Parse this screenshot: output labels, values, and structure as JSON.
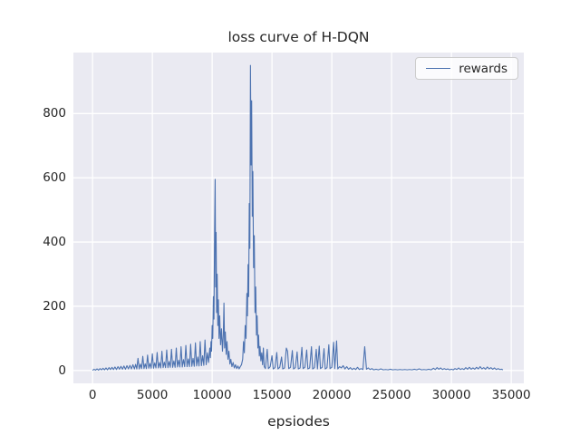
{
  "chart_data": {
    "type": "line",
    "title": "loss curve of H-DQN",
    "xlabel": "epsiodes",
    "ylabel": "",
    "legend_position": "upper right",
    "grid": true,
    "background_color": "#eaeaf2",
    "grid_color": "#ffffff",
    "text_color": "#262626",
    "line_color": "#4c72b0",
    "xlim": [
      -1600,
      36050
    ],
    "ylim": [
      -40,
      990
    ],
    "x_ticks": [
      0,
      5000,
      10000,
      15000,
      20000,
      25000,
      30000,
      35000
    ],
    "y_ticks": [
      0,
      200,
      400,
      600,
      800
    ],
    "series": [
      {
        "name": "rewards",
        "color": "#4c72b0",
        "points": [
          [
            0,
            0.5
          ],
          [
            125,
            4
          ],
          [
            250,
            1
          ],
          [
            375,
            5
          ],
          [
            500,
            1
          ],
          [
            625,
            6
          ],
          [
            750,
            2
          ],
          [
            875,
            7
          ],
          [
            1000,
            2
          ],
          [
            1125,
            8
          ],
          [
            1250,
            2
          ],
          [
            1375,
            9
          ],
          [
            1500,
            3
          ],
          [
            1625,
            10
          ],
          [
            1750,
            3
          ],
          [
            1875,
            11
          ],
          [
            2000,
            3
          ],
          [
            2125,
            12
          ],
          [
            2250,
            4
          ],
          [
            2375,
            13
          ],
          [
            2500,
            4
          ],
          [
            2625,
            14
          ],
          [
            2750,
            4
          ],
          [
            2875,
            15
          ],
          [
            3000,
            5
          ],
          [
            3125,
            16
          ],
          [
            3250,
            5
          ],
          [
            3375,
            18
          ],
          [
            3500,
            5
          ],
          [
            3600,
            19
          ],
          [
            3700,
            5
          ],
          [
            3800,
            38
          ],
          [
            3900,
            5
          ],
          [
            4000,
            20
          ],
          [
            4100,
            6
          ],
          [
            4200,
            44
          ],
          [
            4300,
            6
          ],
          [
            4400,
            21
          ],
          [
            4500,
            6
          ],
          [
            4600,
            48
          ],
          [
            4700,
            7
          ],
          [
            4800,
            22
          ],
          [
            4900,
            7
          ],
          [
            5000,
            52
          ],
          [
            5100,
            7
          ],
          [
            5200,
            24
          ],
          [
            5300,
            8
          ],
          [
            5400,
            56
          ],
          [
            5500,
            8
          ],
          [
            5600,
            25
          ],
          [
            5700,
            8
          ],
          [
            5800,
            60
          ],
          [
            5900,
            9
          ],
          [
            6000,
            26
          ],
          [
            6100,
            9
          ],
          [
            6200,
            64
          ],
          [
            6300,
            9
          ],
          [
            6400,
            28
          ],
          [
            6500,
            10
          ],
          [
            6600,
            66
          ],
          [
            6700,
            10
          ],
          [
            6800,
            30
          ],
          [
            6900,
            10
          ],
          [
            7000,
            70
          ],
          [
            7100,
            11
          ],
          [
            7200,
            32
          ],
          [
            7300,
            11
          ],
          [
            7400,
            74
          ],
          [
            7500,
            11
          ],
          [
            7600,
            34
          ],
          [
            7700,
            12
          ],
          [
            7800,
            78
          ],
          [
            7900,
            12
          ],
          [
            8000,
            36
          ],
          [
            8100,
            12
          ],
          [
            8200,
            82
          ],
          [
            8300,
            13
          ],
          [
            8400,
            38
          ],
          [
            8500,
            13
          ],
          [
            8600,
            86
          ],
          [
            8700,
            14
          ],
          [
            8800,
            42
          ],
          [
            8900,
            14
          ],
          [
            9000,
            90
          ],
          [
            9100,
            15
          ],
          [
            9200,
            46
          ],
          [
            9300,
            16
          ],
          [
            9400,
            95
          ],
          [
            9500,
            18
          ],
          [
            9600,
            55
          ],
          [
            9700,
            25
          ],
          [
            9800,
            70
          ],
          [
            9850,
            40
          ],
          [
            9900,
            90
          ],
          [
            9950,
            60
          ],
          [
            10000,
            140
          ],
          [
            10050,
            100
          ],
          [
            10100,
            230
          ],
          [
            10150,
            160
          ],
          [
            10200,
            420
          ],
          [
            10250,
            595
          ],
          [
            10290,
            260
          ],
          [
            10330,
            430
          ],
          [
            10370,
            180
          ],
          [
            10420,
            300
          ],
          [
            10470,
            140
          ],
          [
            10520,
            220
          ],
          [
            10570,
            100
          ],
          [
            10630,
            170
          ],
          [
            10700,
            80
          ],
          [
            10780,
            130
          ],
          [
            10860,
            60
          ],
          [
            10930,
            110
          ],
          [
            10985,
            210
          ],
          [
            11040,
            70
          ],
          [
            11100,
            120
          ],
          [
            11170,
            50
          ],
          [
            11240,
            90
          ],
          [
            11320,
            35
          ],
          [
            11400,
            60
          ],
          [
            11480,
            20
          ],
          [
            11560,
            35
          ],
          [
            11650,
            12
          ],
          [
            11750,
            25
          ],
          [
            11850,
            8
          ],
          [
            11950,
            18
          ],
          [
            12050,
            6
          ],
          [
            12150,
            14
          ],
          [
            12250,
            5
          ],
          [
            12350,
            12
          ],
          [
            12450,
            18
          ],
          [
            12550,
            35
          ],
          [
            12620,
            90
          ],
          [
            12690,
            55
          ],
          [
            12760,
            140
          ],
          [
            12830,
            100
          ],
          [
            12900,
            240
          ],
          [
            12950,
            170
          ],
          [
            13000,
            330
          ],
          [
            13050,
            230
          ],
          [
            13100,
            520
          ],
          [
            13150,
            380
          ],
          [
            13200,
            950
          ],
          [
            13250,
            640
          ],
          [
            13300,
            840
          ],
          [
            13350,
            480
          ],
          [
            13400,
            620
          ],
          [
            13460,
            320
          ],
          [
            13520,
            420
          ],
          [
            13580,
            180
          ],
          [
            13640,
            260
          ],
          [
            13700,
            110
          ],
          [
            13760,
            170
          ],
          [
            13820,
            70
          ],
          [
            13880,
            110
          ],
          [
            13940,
            45
          ],
          [
            14000,
            75
          ],
          [
            14070,
            30
          ],
          [
            14140,
            55
          ],
          [
            14210,
            18
          ],
          [
            14280,
            70
          ],
          [
            14350,
            12
          ],
          [
            14450,
            6
          ],
          [
            14600,
            66
          ],
          [
            14700,
            6
          ],
          [
            14850,
            12
          ],
          [
            15000,
            46
          ],
          [
            15100,
            5
          ],
          [
            15250,
            9
          ],
          [
            15400,
            56
          ],
          [
            15500,
            5
          ],
          [
            15650,
            10
          ],
          [
            15800,
            42
          ],
          [
            15900,
            5
          ],
          [
            16050,
            8
          ],
          [
            16200,
            70
          ],
          [
            16300,
            60
          ],
          [
            16400,
            6
          ],
          [
            16550,
            10
          ],
          [
            16700,
            62
          ],
          [
            16800,
            5
          ],
          [
            16950,
            9
          ],
          [
            17100,
            58
          ],
          [
            17200,
            5
          ],
          [
            17350,
            8
          ],
          [
            17500,
            72
          ],
          [
            17600,
            6
          ],
          [
            17750,
            10
          ],
          [
            17900,
            64
          ],
          [
            18000,
            5
          ],
          [
            18150,
            8
          ],
          [
            18300,
            74
          ],
          [
            18400,
            5
          ],
          [
            18550,
            9
          ],
          [
            18700,
            66
          ],
          [
            18800,
            5
          ],
          [
            18950,
            76
          ],
          [
            19050,
            6
          ],
          [
            19200,
            10
          ],
          [
            19350,
            68
          ],
          [
            19450,
            5
          ],
          [
            19600,
            9
          ],
          [
            19750,
            80
          ],
          [
            19850,
            6
          ],
          [
            20000,
            10
          ],
          [
            20150,
            88
          ],
          [
            20250,
            6
          ],
          [
            20400,
            92
          ],
          [
            20500,
            5
          ],
          [
            20650,
            12
          ],
          [
            20800,
            8
          ],
          [
            20950,
            15
          ],
          [
            21100,
            5
          ],
          [
            21250,
            12
          ],
          [
            21400,
            4
          ],
          [
            21550,
            9
          ],
          [
            21700,
            3
          ],
          [
            21850,
            7
          ],
          [
            22000,
            3
          ],
          [
            22150,
            10
          ],
          [
            22300,
            3
          ],
          [
            22450,
            6
          ],
          [
            22600,
            3
          ],
          [
            22750,
            74
          ],
          [
            22900,
            4
          ],
          [
            23050,
            8
          ],
          [
            23200,
            3
          ],
          [
            23350,
            6
          ],
          [
            23500,
            2
          ],
          [
            23700,
            4
          ],
          [
            23900,
            2
          ],
          [
            24100,
            5
          ],
          [
            24300,
            2
          ],
          [
            24500,
            3
          ],
          [
            24700,
            2
          ],
          [
            24900,
            4
          ],
          [
            25100,
            2
          ],
          [
            25300,
            3
          ],
          [
            25500,
            2
          ],
          [
            25700,
            3
          ],
          [
            25900,
            2
          ],
          [
            26100,
            3
          ],
          [
            26300,
            2
          ],
          [
            26500,
            3
          ],
          [
            26700,
            2
          ],
          [
            26900,
            4
          ],
          [
            27100,
            2
          ],
          [
            27300,
            5
          ],
          [
            27500,
            2
          ],
          [
            27700,
            3
          ],
          [
            27900,
            2
          ],
          [
            28100,
            4
          ],
          [
            28300,
            2
          ],
          [
            28500,
            7
          ],
          [
            28650,
            3
          ],
          [
            28800,
            9
          ],
          [
            28950,
            4
          ],
          [
            29100,
            8
          ],
          [
            29250,
            3
          ],
          [
            29400,
            6
          ],
          [
            29550,
            3
          ],
          [
            29700,
            5
          ],
          [
            29850,
            2
          ],
          [
            30000,
            4
          ],
          [
            30150,
            2
          ],
          [
            30300,
            6
          ],
          [
            30450,
            3
          ],
          [
            30600,
            8
          ],
          [
            30750,
            3
          ],
          [
            30900,
            6
          ],
          [
            31050,
            3
          ],
          [
            31200,
            9
          ],
          [
            31350,
            4
          ],
          [
            31500,
            10
          ],
          [
            31650,
            4
          ],
          [
            31800,
            8
          ],
          [
            31950,
            4
          ],
          [
            32100,
            10
          ],
          [
            32250,
            5
          ],
          [
            32400,
            12
          ],
          [
            32550,
            5
          ],
          [
            32700,
            9
          ],
          [
            32850,
            4
          ],
          [
            33000,
            11
          ],
          [
            33150,
            5
          ],
          [
            33300,
            9
          ],
          [
            33450,
            4
          ],
          [
            33600,
            8
          ],
          [
            33750,
            3
          ],
          [
            33900,
            6
          ],
          [
            34050,
            3
          ],
          [
            34200,
            4
          ],
          [
            34300,
            2
          ]
        ]
      }
    ]
  }
}
